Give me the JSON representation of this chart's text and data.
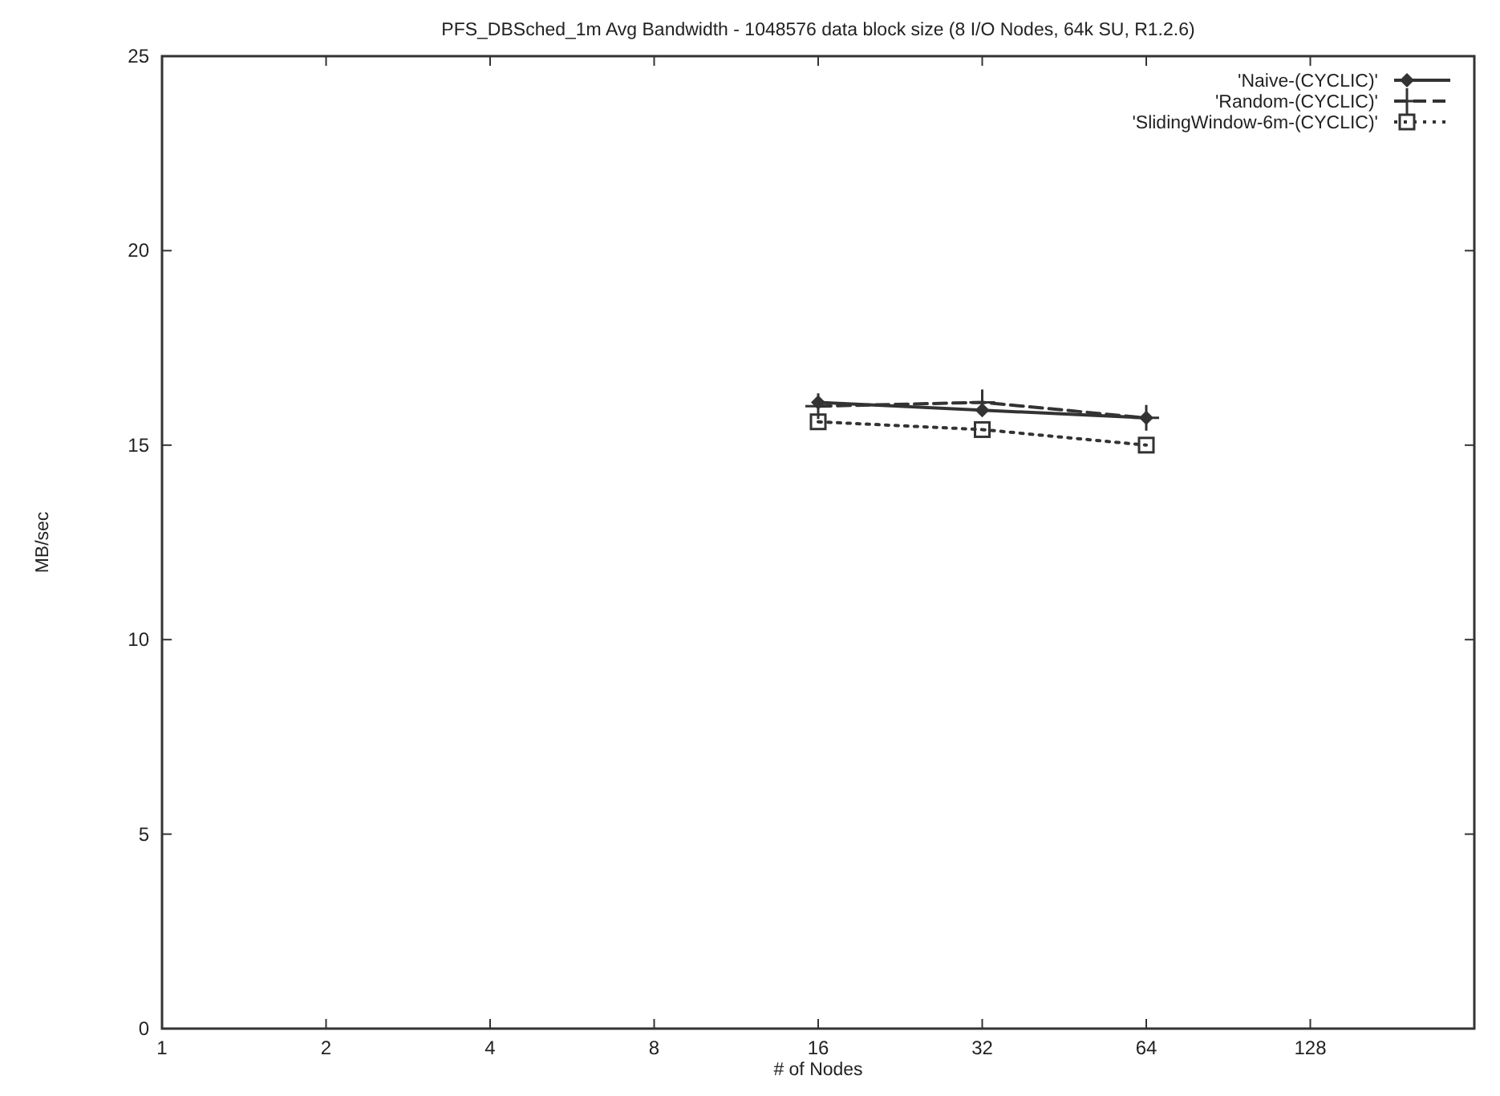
{
  "chart_data": {
    "type": "line",
    "title": "PFS_DBSched_1m Avg Bandwidth - 1048576 data block size (8 I/O Nodes, 64k SU, R1.2.6)",
    "xlabel": "# of Nodes",
    "ylabel": "MB/sec",
    "x": [
      16,
      32,
      64
    ],
    "log": "x",
    "xlim": [
      1,
      256
    ],
    "xticks": [
      1,
      2,
      4,
      8,
      16,
      32,
      64,
      128
    ],
    "ylim": [
      0,
      25
    ],
    "yticks": [
      0,
      5,
      10,
      15,
      20,
      25
    ],
    "grid": false,
    "legend": "top right",
    "series": [
      {
        "name": "'Naive-(CYCLIC)'",
        "color": "#333333",
        "values": [
          16.1,
          15.9,
          15.7
        ],
        "marker": "diamond",
        "line_style": "solid"
      },
      {
        "name": "'Random-(CYCLIC)'",
        "color": "#333333",
        "values": [
          16.0,
          16.1,
          15.7
        ],
        "marker": "cross",
        "line_style": "dashed"
      },
      {
        "name": "'SlidingWindow-6m-(CYCLIC)'",
        "color": "#333333",
        "values": [
          15.6,
          15.4,
          15.0
        ],
        "marker": "square",
        "line_style": "dotted"
      }
    ]
  }
}
